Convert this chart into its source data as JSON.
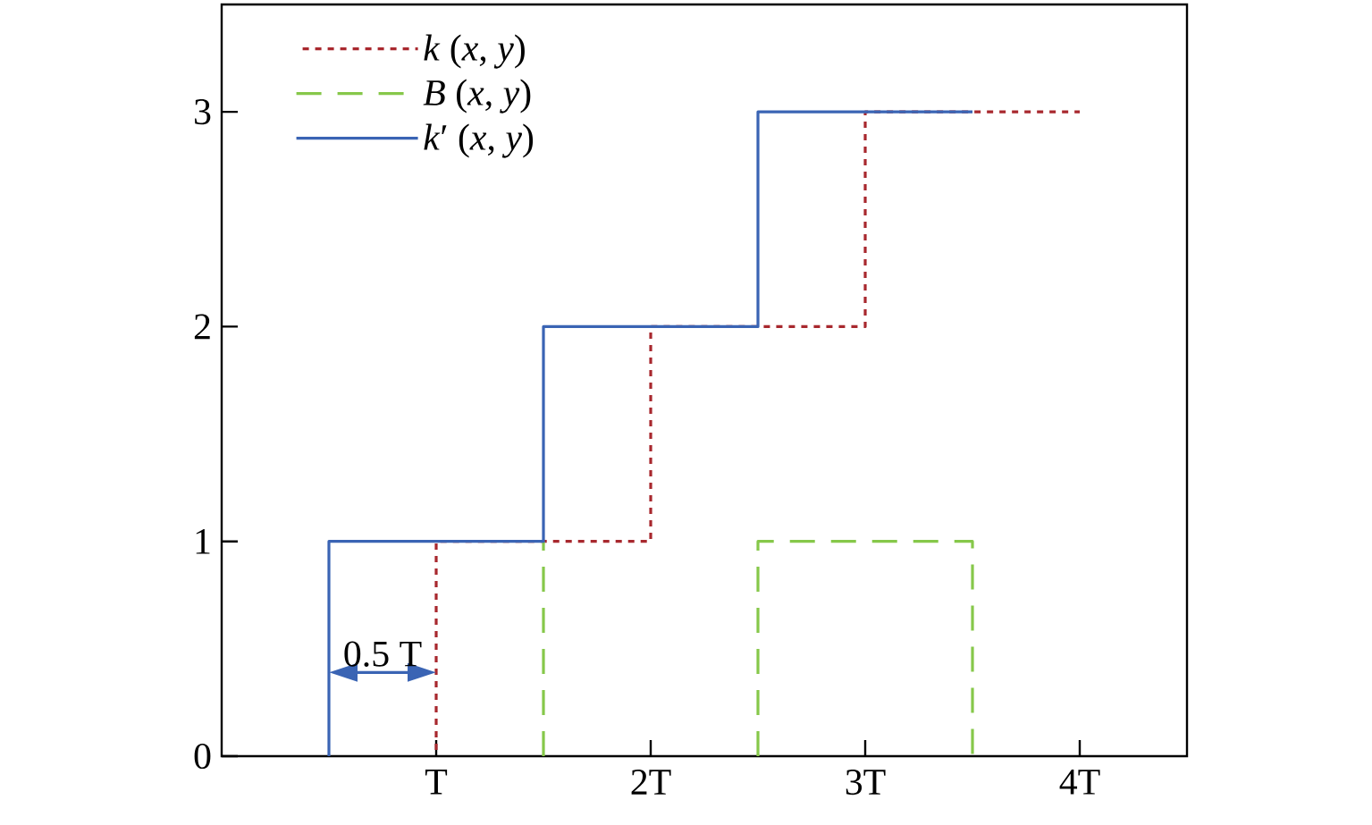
{
  "chart_data": {
    "type": "step",
    "xlim": [
      0,
      4.5
    ],
    "ylim": [
      0,
      3.5
    ],
    "xticks": [
      {
        "value": 1,
        "label": "T"
      },
      {
        "value": 2,
        "label": "2T"
      },
      {
        "value": 3,
        "label": "3T"
      },
      {
        "value": 4,
        "label": "4T"
      }
    ],
    "yticks": [
      0,
      1,
      2,
      3
    ],
    "legend": "top left",
    "series": [
      {
        "name": "*k* (*x*, *y*)",
        "color": "#a8282e",
        "line_style": "dotted",
        "x": [
          1,
          1,
          2,
          3,
          4
        ],
        "values": [
          0,
          1,
          2,
          3,
          3
        ]
      },
      {
        "name": "*B* (*x*, *y*)",
        "color": "#86c84a",
        "line_style": "dashed",
        "x": [
          1.5,
          1.5,
          null,
          2.5,
          2.5,
          3.5,
          3.5
        ],
        "values": [
          0,
          1,
          null,
          0,
          1,
          1,
          0
        ]
      },
      {
        "name": "*k*′ (*x*, *y*)",
        "color": "#3a64b4",
        "line_style": "solid",
        "x": [
          0.5,
          0.5,
          1.5,
          2.5,
          3.5
        ],
        "values": [
          0,
          1,
          2,
          3,
          3
        ]
      }
    ],
    "annotations": [
      "0.5 T"
    ]
  }
}
